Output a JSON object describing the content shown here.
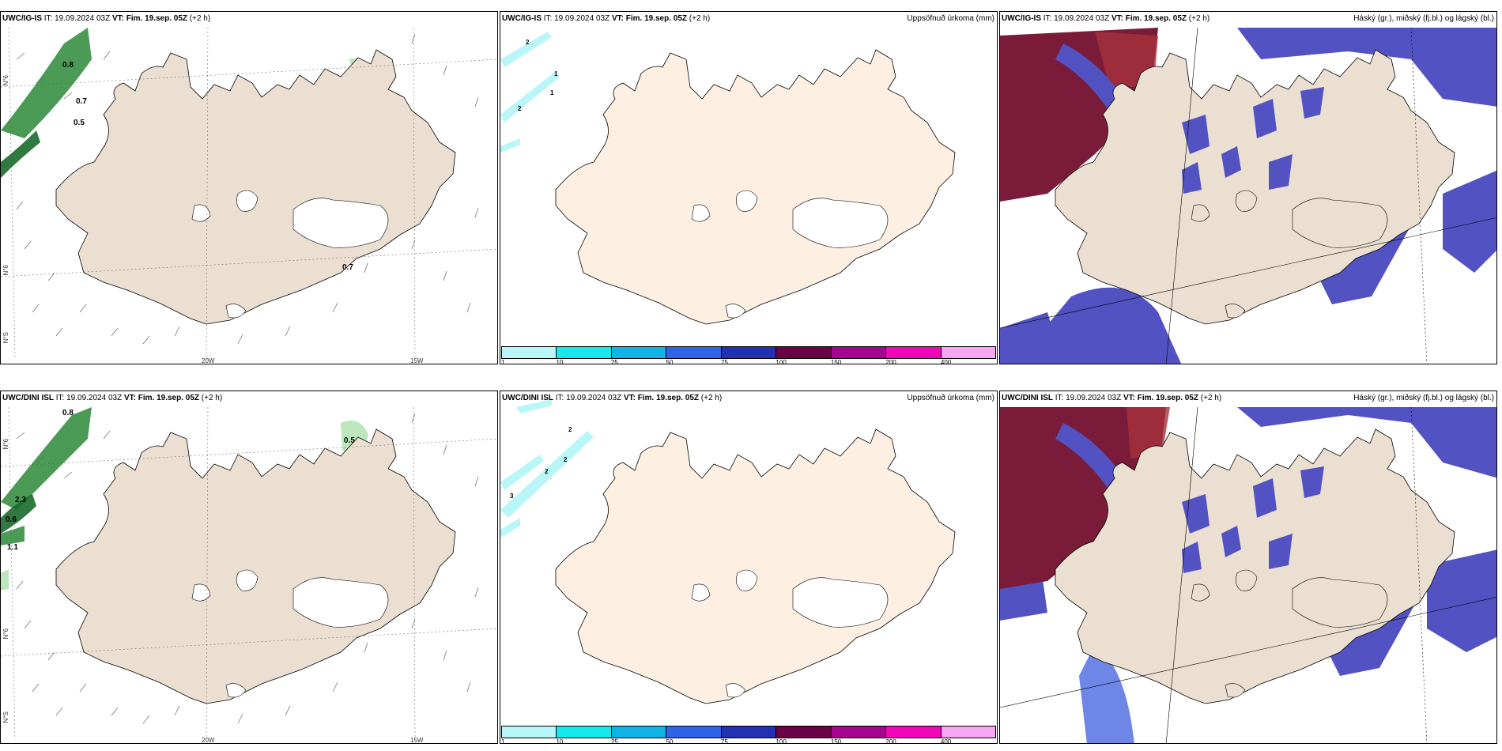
{
  "rows": [
    {
      "model": "UWC/IG-IS",
      "init": "IT: 19.09.2024 03Z",
      "vt_label": "VT:",
      "vt_value": "Fim. 19.sep. 05Z",
      "offset": "(+2 h)",
      "wind_labels": [
        "0.8",
        "0.7",
        "0.5",
        "0.7"
      ],
      "precip_labels": [
        "2",
        "1",
        "1",
        "2"
      ]
    },
    {
      "model": "UWC/DINI ISL",
      "init": "IT: 19.09.2024 03Z",
      "vt_label": "VT:",
      "vt_value": "Fim. 19.sep. 05Z",
      "offset": "(+2 h)",
      "wind_labels": [
        "0.8",
        "0.5",
        "2.3",
        "0.6",
        "1.1"
      ],
      "precip_labels": [
        "2",
        "2",
        "2",
        "3"
      ]
    }
  ],
  "titles": {
    "precip": "Uppsöfnuð úrkoma (mm)",
    "cloud": "Háský (gr.), miðský (fj.bl.) og lágský (bl.)"
  },
  "axes": {
    "lon_left": "20W",
    "lon_right": "15W",
    "lat_top": "N°6",
    "lat_mid": "N°6",
    "lat_bottom": "N°S"
  },
  "colorbar": {
    "ticks": [
      "1",
      "10",
      "25",
      "50",
      "75",
      "100",
      "150",
      "200",
      "400"
    ],
    "colors": [
      "#b8f6f8",
      "#16e9ec",
      "#11b2e6",
      "#2f63e8",
      "#2231b2",
      "#6a0344",
      "#a4048e",
      "#f007b8",
      "#f5a7f2"
    ]
  },
  "colors": {
    "land_wind": "#ebdfd1",
    "land_precip": "#fdf0e2",
    "land_cloud": "#ebdfd1",
    "low_cloud": "#5252c2",
    "high_cloud": "#7a1b3a",
    "wind_precip": "#1a6b2c"
  }
}
